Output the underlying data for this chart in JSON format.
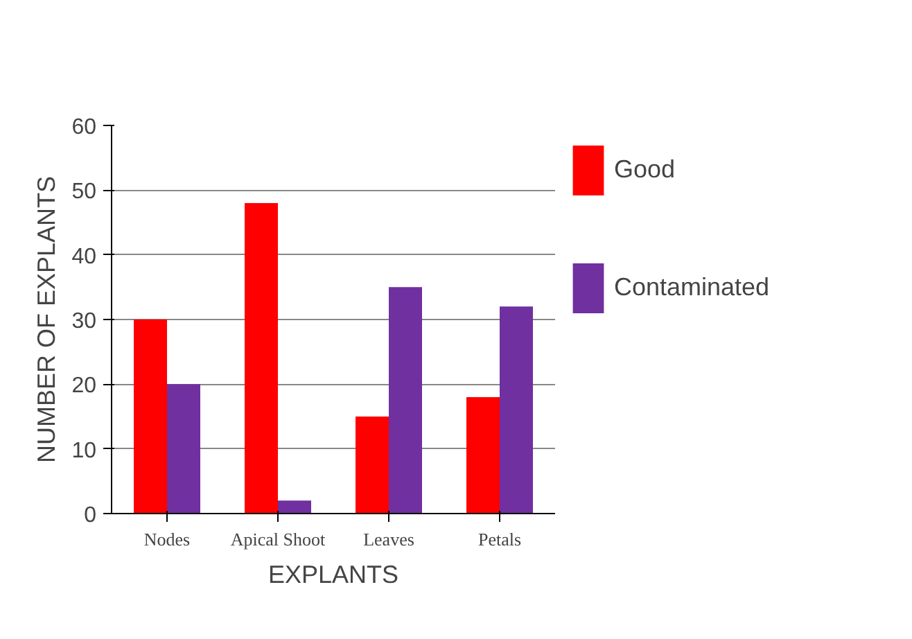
{
  "chart_data": {
    "type": "bar",
    "xlabel": "EXPLANTS",
    "ylabel": "NUMBER OF EXPLANTS",
    "categories": [
      "Nodes",
      "Apical Shoot",
      "Leaves",
      "Petals"
    ],
    "series": [
      {
        "name": "Good",
        "color": "#ff0000",
        "values": [
          30,
          48,
          15,
          18
        ]
      },
      {
        "name": "Contaminated",
        "color": "#7030a0",
        "values": [
          20,
          2,
          35,
          32
        ]
      }
    ],
    "ylim": [
      0,
      60
    ],
    "yticks": [
      0,
      10,
      20,
      30,
      40,
      50,
      60
    ],
    "grid": "y",
    "legend": "right"
  }
}
